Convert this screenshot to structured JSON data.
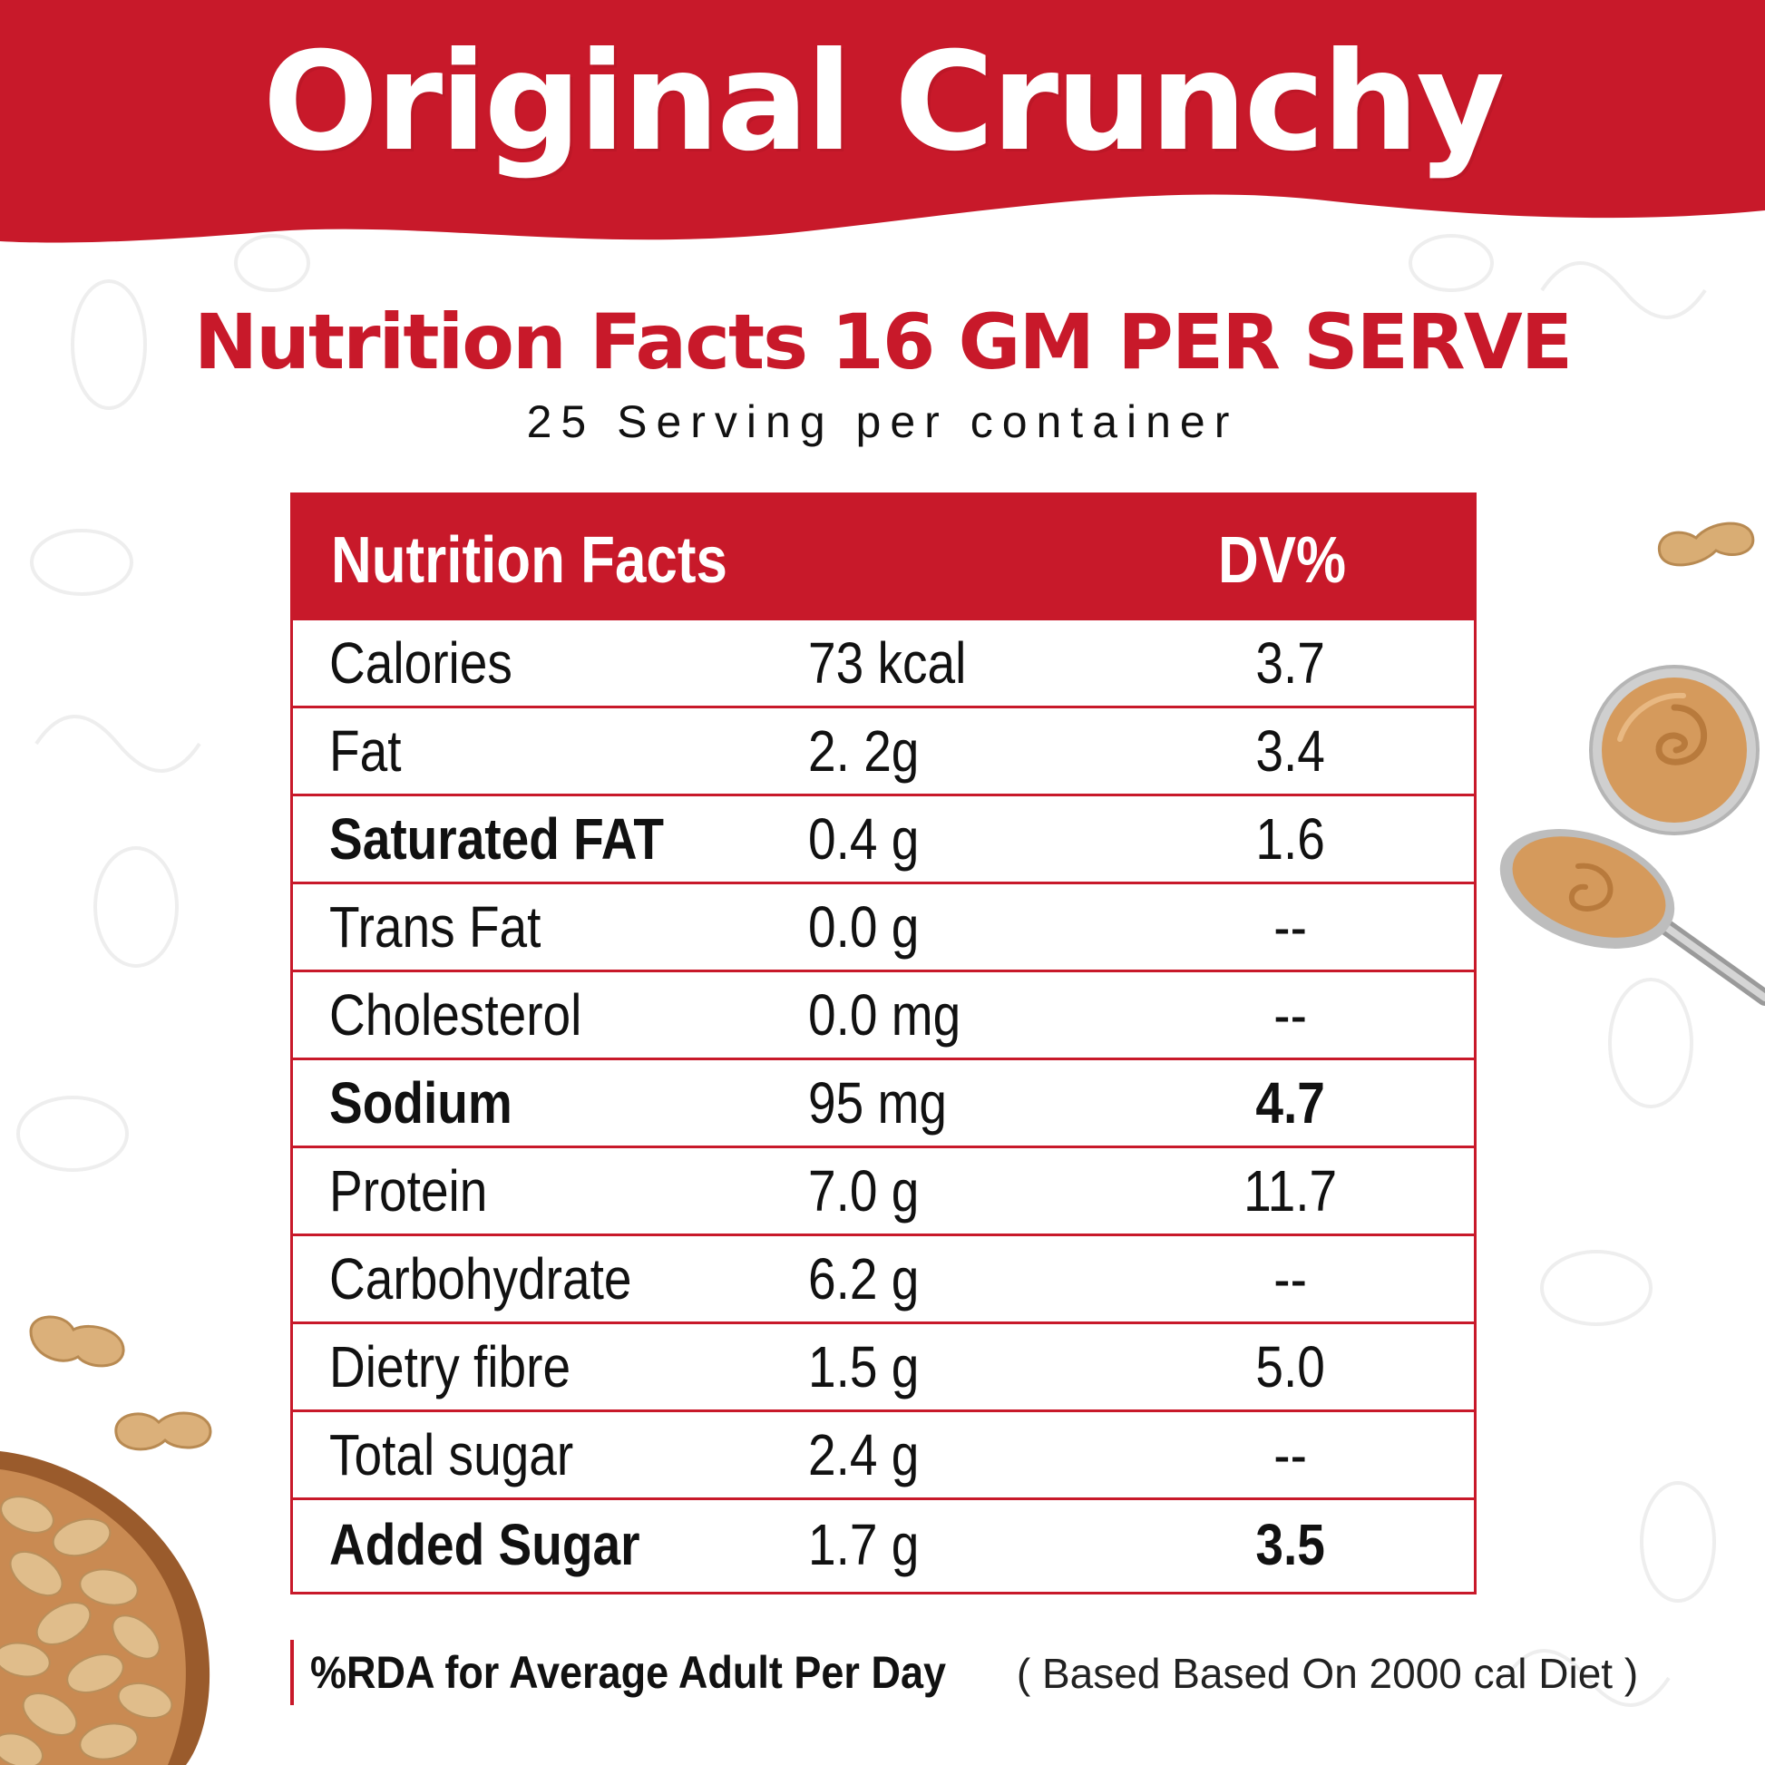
{
  "colors": {
    "brand_red": "#c8192a",
    "text": "#111111",
    "background": "#ffffff",
    "peanut": "#d7a86e"
  },
  "header": {
    "title": "Original Crunchy",
    "subtitle": "Nutrition Facts 16 GM PER SERVE",
    "servings": "25 Serving per container"
  },
  "table": {
    "col_name": "Nutrition  Facts",
    "col_dv": "DV%",
    "rows": [
      {
        "name": "Calories",
        "amount": "73 kcal",
        "dv": "3.7",
        "bold_name": false,
        "bold_dv": false
      },
      {
        "name": "Fat",
        "amount": "2. 2g",
        "dv": "3.4",
        "bold_name": false,
        "bold_dv": false
      },
      {
        "name": "Saturated FAT",
        "amount": "0.4 g",
        "dv": "1.6",
        "bold_name": true,
        "bold_dv": false
      },
      {
        "name": "Trans Fat",
        "amount": "0.0 g",
        "dv": "--",
        "bold_name": false,
        "bold_dv": false
      },
      {
        "name": "Cholesterol",
        "amount": "0.0 mg",
        "dv": "--",
        "bold_name": false,
        "bold_dv": false
      },
      {
        "name": "Sodium",
        "amount": "95 mg",
        "dv": "4.7",
        "bold_name": true,
        "bold_dv": true
      },
      {
        "name": "Protein",
        "amount": "7.0 g",
        "dv": "11.7",
        "bold_name": false,
        "bold_dv": false
      },
      {
        "name": "Carbohydrate",
        "amount": "6.2 g",
        "dv": "--",
        "bold_name": false,
        "bold_dv": false
      },
      {
        "name": "Dietry fibre",
        "amount": "1.5 g",
        "dv": "5.0",
        "bold_name": false,
        "bold_dv": false
      },
      {
        "name": "Total sugar",
        "amount": "2.4 g",
        "dv": "--",
        "bold_name": false,
        "bold_dv": false
      },
      {
        "name": "Added Sugar",
        "amount": "1.7 g",
        "dv": "3.5",
        "bold_name": true,
        "bold_dv": true
      }
    ]
  },
  "footnote": {
    "bold": "%RDA for Average Adult Per Day",
    "normal": " ( Based Based On 2000  cal Diet )"
  },
  "icons": [
    "peanut-icon",
    "peanut-butter-bowl-icon",
    "peanut-butter-spoon-icon",
    "peanut-bowl-icon"
  ]
}
